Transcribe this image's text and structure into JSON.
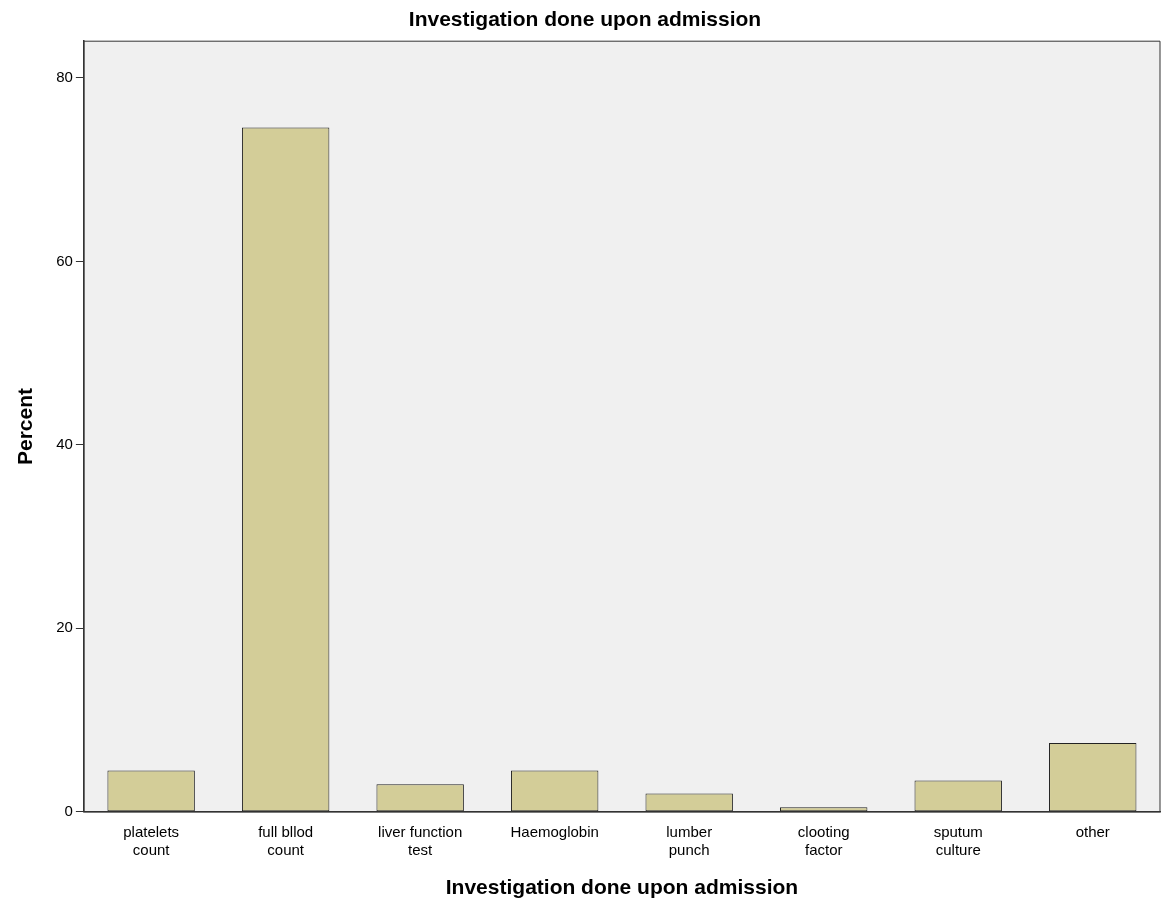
{
  "chart_data": {
    "type": "bar",
    "title": "Investigation done upon admission",
    "xlabel": "Investigation done upon admission",
    "ylabel": "Percent",
    "categories": [
      "platelets count",
      "full bllod count",
      "liver function test",
      "Haemoglobin",
      "lumber punch",
      "clooting factor",
      "sputum culture",
      "other"
    ],
    "values": [
      4.5,
      74.6,
      3.0,
      4.5,
      2.0,
      0.5,
      3.4,
      7.5
    ],
    "color": "#d3cd98",
    "ylim": [
      0,
      84
    ],
    "yticks": [
      0,
      20,
      40,
      60,
      80
    ],
    "grid": false,
    "legend": false
  }
}
